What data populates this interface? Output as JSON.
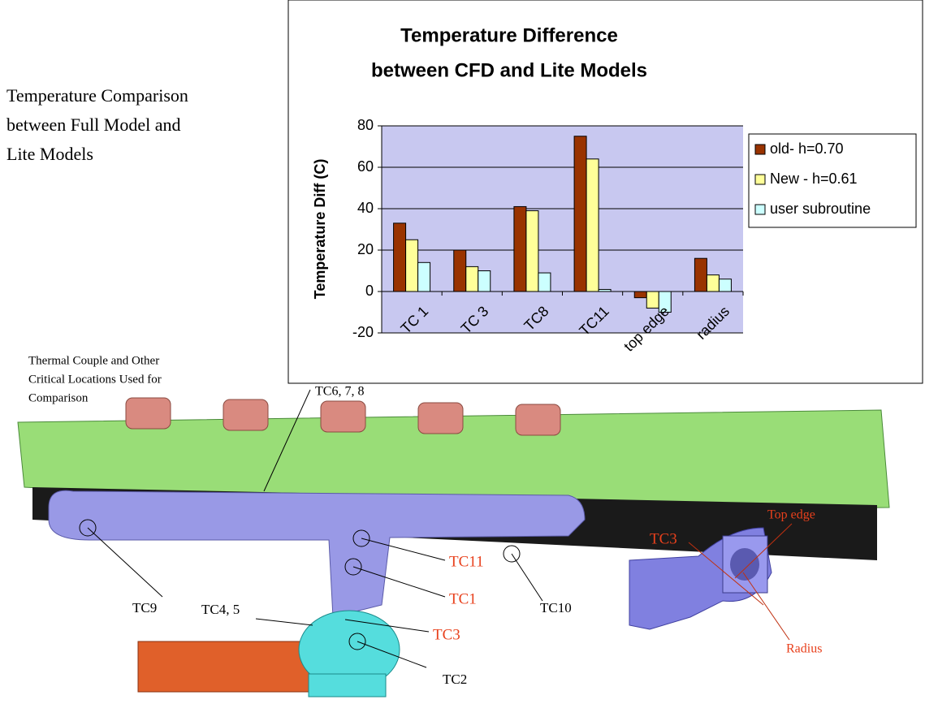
{
  "slide": {
    "heading": [
      "Temperature Comparison",
      "between Full Model and",
      "Lite Models"
    ],
    "caption": [
      "Thermal Couple and Other",
      "Critical Locations Used for",
      "Comparison"
    ],
    "labels": [
      "TC6, 7, 8",
      "TC9",
      "TC4, 5",
      "TC11",
      "TC1",
      "TC3",
      "TC10",
      "TC2",
      "Top edge",
      "TC3",
      "Radius"
    ]
  },
  "chart_data": {
    "type": "bar",
    "title": [
      "Temperature Difference",
      "between CFD and Lite Models"
    ],
    "y_label": "Temperature Diff (C)",
    "categories": [
      "TC 1",
      "TC 3",
      "TC8",
      "TC11",
      "top edge",
      "radius"
    ],
    "series": [
      {
        "name": "old- h=0.70",
        "color": "#993300",
        "values": [
          33,
          20,
          41,
          75,
          -3,
          16
        ]
      },
      {
        "name": "New - h=0.61",
        "color": "#ffff99",
        "values": [
          25,
          12,
          39,
          64,
          -8,
          8
        ]
      },
      {
        "name": "user subroutine",
        "color": "#ccffff",
        "values": [
          14,
          10,
          9,
          1,
          -10,
          6
        ]
      }
    ],
    "ylim": [
      -20,
      80
    ],
    "yticks": [
      -20,
      0,
      20,
      40,
      60,
      80
    ],
    "grid": true,
    "legend": "right"
  }
}
